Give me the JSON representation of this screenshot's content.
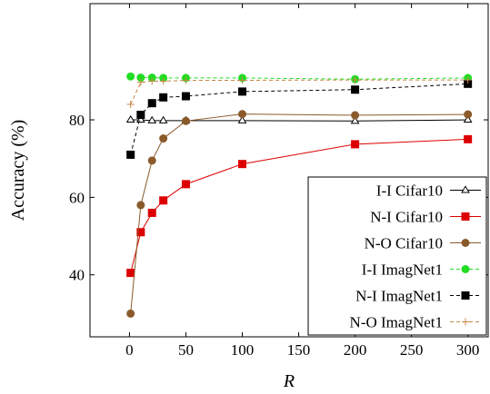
{
  "chart_data": {
    "type": "line",
    "xlabel": "R",
    "ylabel": "Accuracy (%)",
    "xlim": [
      -35,
      318
    ],
    "ylim": [
      24,
      110
    ],
    "xticks": [
      0,
      50,
      100,
      150,
      200,
      250,
      300
    ],
    "yticks": [
      40,
      60,
      80
    ],
    "grid": false,
    "legend_position": "bottom-right",
    "series": [
      {
        "name": "I-I Cifar10",
        "color": "#000000",
        "line_style": "solid",
        "marker": "triangle-open",
        "x": [
          1,
          10,
          20,
          30,
          50,
          100,
          200,
          300
        ],
        "y": [
          80.0,
          80.0,
          79.8,
          79.8,
          79.8,
          79.8,
          79.7,
          80.0
        ]
      },
      {
        "name": "N-I Cifar10",
        "color": "#dd0000",
        "line_style": "solid",
        "marker": "square",
        "x": [
          1,
          10,
          20,
          30,
          50,
          100,
          200,
          300
        ],
        "y": [
          40.5,
          51.0,
          56.0,
          59.2,
          63.4,
          68.6,
          73.7,
          75.0
        ]
      },
      {
        "name": "N-O Cifar10",
        "color": "#8b5a2b",
        "line_style": "solid",
        "marker": "circle",
        "x": [
          1,
          10,
          20,
          30,
          50,
          100,
          200,
          300
        ],
        "y": [
          30.0,
          58.0,
          69.5,
          75.2,
          79.7,
          81.5,
          81.2,
          81.4
        ]
      },
      {
        "name": "I-I ImagNet1",
        "color": "#22dd22",
        "line_style": "dashed",
        "marker": "circle",
        "x": [
          1,
          10,
          20,
          30,
          50,
          100,
          200,
          300
        ],
        "y": [
          91.2,
          90.9,
          90.9,
          90.8,
          90.8,
          90.8,
          90.5,
          90.8
        ]
      },
      {
        "name": "N-I ImagNet1",
        "color": "#000000",
        "line_style": "dashed",
        "marker": "square",
        "x": [
          1,
          10,
          20,
          30,
          50,
          100,
          200,
          300
        ],
        "y": [
          71.0,
          81.3,
          84.3,
          85.8,
          86.1,
          87.3,
          87.8,
          89.3
        ]
      },
      {
        "name": "N-O ImagNet1",
        "color": "#c8874a",
        "line_style": "dashed",
        "marker": "plus",
        "x": [
          1,
          10,
          20,
          30,
          50,
          100,
          200,
          300
        ],
        "y": [
          84.0,
          89.7,
          90.0,
          90.0,
          90.2,
          90.2,
          90.3,
          90.3
        ]
      }
    ]
  }
}
